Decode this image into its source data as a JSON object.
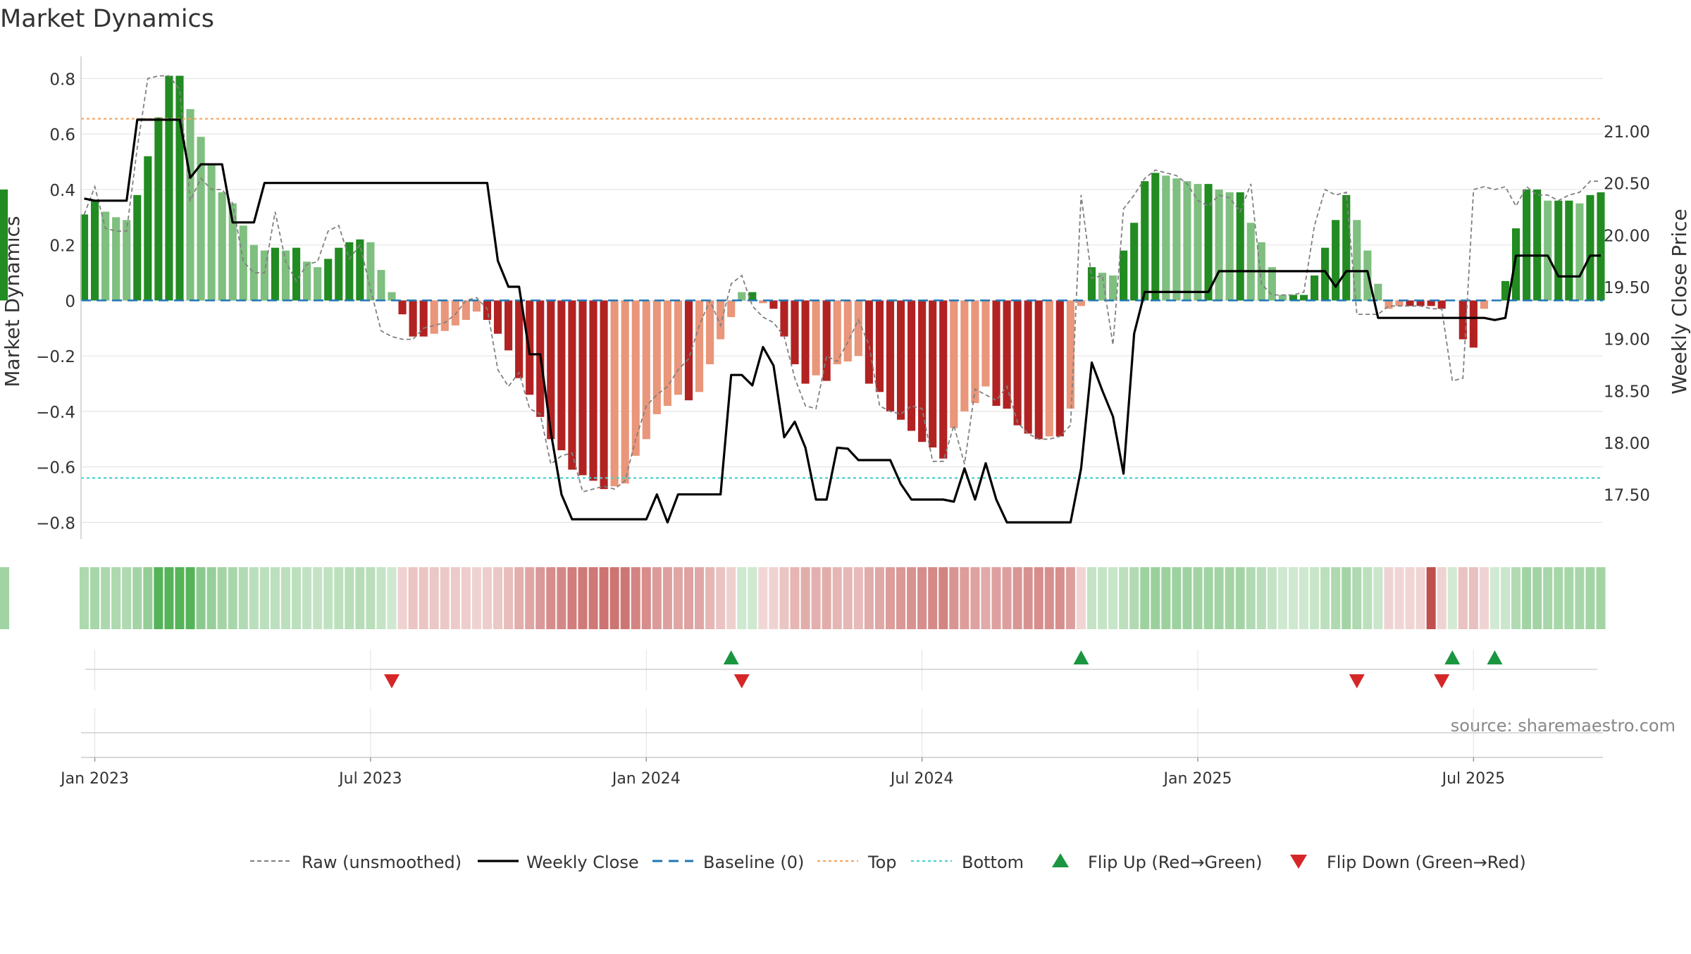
{
  "colors": {
    "strong_green": "#228b22",
    "light_green": "#7fbf7f",
    "strong_red": "#b22222",
    "light_red": "#e9967a",
    "raw_line": "#808080",
    "close_line": "#000000",
    "baseline": "#1f77b4",
    "top_line": "#f4a460",
    "bottom_line": "#48d1cc",
    "flip_up": "#1a9641",
    "flip_down": "#d62728",
    "grid": "#e6e6e6",
    "text": "#333333",
    "source_text": "#888888"
  },
  "chart_data": {
    "type": "bar",
    "title": "Market Dynamics",
    "source": "source: sharemaestro.com",
    "ylabel_left": "Market Dynamics",
    "ylabel_right": "Weekly Close Price",
    "left_axis": {
      "ylim": [
        -0.86,
        0.88
      ],
      "ticks": [
        0.8,
        0.6,
        0.4,
        0.2,
        0,
        -0.2,
        -0.4,
        -0.6,
        -0.8
      ],
      "tick_labels": [
        "0.8",
        "0.6",
        "0.4",
        "0.2",
        "0",
        "−0.2",
        "−0.4",
        "−0.6",
        "−0.8"
      ]
    },
    "right_axis": {
      "ylim": [
        17.07,
        21.72
      ],
      "ticks": [
        21.0,
        20.5,
        20.0,
        19.5,
        19.0,
        18.5,
        18.0,
        17.5
      ],
      "tick_labels": [
        "21.00",
        "20.50",
        "20.00",
        "19.50",
        "19.00",
        "18.50",
        "18.00",
        "17.50"
      ]
    },
    "x_axis": {
      "ticks": [
        {
          "label": "Jan 2023",
          "week": 1
        },
        {
          "label": "Jul 2023",
          "week": 27
        },
        {
          "label": "Jan 2024",
          "week": 53
        },
        {
          "label": "Jul 2024",
          "week": 79
        },
        {
          "label": "Jan 2025",
          "week": 105
        },
        {
          "label": "Jul 2025",
          "week": 131
        }
      ],
      "week_range": [
        -0.3,
        143.2
      ]
    },
    "top_level": 0.655,
    "bottom_level": -0.64,
    "baseline": 0,
    "weeks": [
      0,
      1,
      2,
      3,
      4,
      5,
      6,
      7,
      8,
      9,
      10,
      11,
      12,
      13,
      14,
      15,
      16,
      17,
      18,
      19,
      20,
      21,
      22,
      23,
      24,
      25,
      26,
      27,
      28,
      29,
      30,
      31,
      32,
      33,
      34,
      35,
      36,
      37,
      38,
      39,
      40,
      41,
      42,
      43,
      44,
      45,
      46,
      47,
      48,
      49,
      50,
      51,
      52,
      53,
      54,
      55,
      56,
      57,
      58,
      59,
      60,
      61,
      62,
      63,
      64,
      65,
      66,
      67,
      68,
      69,
      70,
      71,
      72,
      73,
      74,
      75,
      76,
      77,
      78,
      79,
      80,
      81,
      82,
      83,
      84,
      85,
      86,
      87,
      88,
      89,
      90,
      91,
      92,
      93,
      94,
      95,
      96,
      97,
      98,
      99,
      100,
      101,
      102,
      103,
      104,
      105,
      106,
      107,
      108,
      109,
      110,
      111,
      112,
      113,
      114,
      115,
      116,
      117,
      118,
      119,
      120,
      121,
      122,
      123,
      124,
      125,
      126,
      127,
      128,
      129,
      130,
      131,
      132,
      133,
      134,
      135,
      136,
      137,
      138,
      139,
      140,
      141,
      142,
      143
    ],
    "dynamics": [
      0.31,
      0.36,
      0.32,
      0.3,
      0.29,
      0.38,
      0.52,
      0.66,
      0.81,
      0.81,
      0.69,
      0.59,
      0.49,
      0.39,
      0.35,
      0.27,
      0.2,
      0.18,
      0.19,
      0.18,
      0.19,
      0.14,
      0.12,
      0.15,
      0.19,
      0.21,
      0.22,
      0.21,
      0.11,
      0.03,
      -0.05,
      -0.13,
      -0.13,
      -0.12,
      -0.11,
      -0.09,
      -0.07,
      -0.04,
      -0.07,
      -0.12,
      -0.18,
      -0.28,
      -0.34,
      -0.42,
      -0.5,
      -0.54,
      -0.61,
      -0.63,
      -0.65,
      -0.68,
      -0.67,
      -0.66,
      -0.56,
      -0.5,
      -0.41,
      -0.38,
      -0.34,
      -0.36,
      -0.33,
      -0.23,
      -0.14,
      -0.06,
      0.03,
      0.03,
      -0.01,
      -0.03,
      -0.13,
      -0.23,
      -0.3,
      -0.27,
      -0.29,
      -0.23,
      -0.22,
      -0.2,
      -0.3,
      -0.33,
      -0.4,
      -0.43,
      -0.47,
      -0.51,
      -0.53,
      -0.57,
      -0.46,
      -0.4,
      -0.37,
      -0.31,
      -0.38,
      -0.39,
      -0.45,
      -0.48,
      -0.5,
      -0.49,
      -0.49,
      -0.39,
      -0.02,
      0.12,
      0.1,
      0.09,
      0.18,
      0.28,
      0.43,
      0.46,
      0.45,
      0.44,
      0.43,
      0.42,
      0.42,
      0.4,
      0.39,
      0.39,
      0.28,
      0.21,
      0.12,
      0.02,
      0.02,
      0.02,
      0.09,
      0.19,
      0.29,
      0.38,
      0.29,
      0.18,
      0.06,
      -0.03,
      -0.02,
      -0.02,
      -0.02,
      -0.02,
      -0.03,
      0,
      -0.14,
      -0.17,
      -0.03,
      0,
      0.07,
      0.26,
      0.4,
      0.4,
      0.36,
      0.36,
      0.36,
      0.35,
      0.38,
      0.39,
      0.4
    ],
    "raw": [
      0.31,
      0.41,
      0.26,
      0.25,
      0.25,
      0.55,
      0.8,
      0.81,
      0.81,
      0.76,
      0.36,
      0.44,
      0.4,
      0.4,
      0.35,
      0.14,
      0.1,
      0.1,
      0.32,
      0.14,
      0.07,
      0.13,
      0.14,
      0.25,
      0.27,
      0.15,
      0.2,
      0.04,
      -0.11,
      -0.13,
      -0.14,
      -0.14,
      -0.1,
      -0.09,
      -0.08,
      -0.05,
      0.0,
      0.01,
      -0.03,
      -0.25,
      -0.31,
      -0.26,
      -0.39,
      -0.41,
      -0.59,
      -0.56,
      -0.55,
      -0.69,
      -0.68,
      -0.67,
      -0.68,
      -0.65,
      -0.5,
      -0.38,
      -0.34,
      -0.31,
      -0.25,
      -0.21,
      -0.09,
      0.0,
      -0.09,
      0.06,
      0.09,
      -0.02,
      -0.06,
      -0.08,
      -0.13,
      -0.28,
      -0.38,
      -0.39,
      -0.2,
      -0.22,
      -0.15,
      -0.07,
      -0.16,
      -0.38,
      -0.4,
      -0.41,
      -0.38,
      -0.39,
      -0.58,
      -0.58,
      -0.45,
      -0.59,
      -0.32,
      -0.34,
      -0.36,
      -0.31,
      -0.44,
      -0.48,
      -0.5,
      -0.5,
      -0.49,
      -0.45,
      0.38,
      0.08,
      0.09,
      -0.16,
      0.33,
      0.38,
      0.44,
      0.47,
      0.46,
      0.45,
      0.42,
      0.36,
      0.34,
      0.38,
      0.37,
      0.32,
      0.42,
      0.06,
      0.02,
      0.02,
      0.02,
      0.03,
      0.27,
      0.4,
      0.38,
      0.39,
      -0.05,
      -0.05,
      -0.05,
      -0.02,
      -0.02,
      -0.02,
      -0.02,
      -0.03,
      -0.03,
      -0.29,
      -0.28,
      0.4,
      0.41,
      0.4,
      0.41,
      0.34,
      0.41,
      0.38,
      0.38,
      0.36,
      0.38,
      0.39,
      0.43,
      0.43
    ],
    "weekly_close": [
      20.35,
      20.33,
      20.33,
      20.33,
      20.33,
      21.11,
      21.11,
      21.11,
      21.11,
      21.11,
      20.55,
      20.68,
      20.68,
      20.68,
      20.12,
      20.12,
      20.12,
      20.5,
      20.5,
      20.5,
      20.5,
      20.5,
      20.5,
      20.5,
      20.5,
      20.5,
      20.5,
      20.5,
      20.5,
      20.5,
      20.5,
      20.5,
      20.5,
      20.5,
      20.5,
      20.5,
      20.5,
      20.5,
      20.5,
      19.75,
      19.5,
      19.5,
      18.85,
      18.85,
      18.1,
      17.5,
      17.26,
      17.26,
      17.26,
      17.26,
      17.26,
      17.26,
      17.26,
      17.26,
      17.5,
      17.23,
      17.5,
      17.5,
      17.5,
      17.5,
      17.5,
      18.65,
      18.65,
      18.55,
      18.92,
      18.74,
      18.05,
      18.2,
      17.95,
      17.45,
      17.45,
      17.95,
      17.94,
      17.83,
      17.83,
      17.83,
      17.83,
      17.6,
      17.45,
      17.45,
      17.45,
      17.45,
      17.43,
      17.75,
      17.45,
      17.8,
      17.45,
      17.23,
      17.23,
      17.23,
      17.23,
      17.23,
      17.23,
      17.23,
      17.75,
      18.77,
      18.5,
      18.25,
      17.7,
      19.05,
      19.45,
      19.45,
      19.45,
      19.45,
      19.45,
      19.45,
      19.45,
      19.65,
      19.65,
      19.65,
      19.65,
      19.65,
      19.65,
      19.65,
      19.65,
      19.65,
      19.65,
      19.65,
      19.5,
      19.65,
      19.65,
      19.65,
      19.2,
      19.2,
      19.2,
      19.2,
      19.2,
      19.2,
      19.2,
      19.2,
      19.2,
      19.2,
      19.2,
      19.18,
      19.2,
      19.8,
      19.8,
      19.8,
      19.8,
      19.6,
      19.6,
      19.6,
      19.8,
      19.8,
      19.8,
      20.0,
      20.0
    ],
    "heat_strip": {
      "strong_green_weeks": [
        7,
        8,
        9,
        10
      ],
      "strong_red_weeks": [
        127
      ]
    },
    "flip_up_weeks": [
      61,
      94,
      129,
      133
    ],
    "flip_down_weeks": [
      29,
      62,
      120,
      128
    ],
    "legend": [
      {
        "label": "Raw (unsmoothed)",
        "style": "dashed-gray"
      },
      {
        "label": "Weekly Close",
        "style": "solid-black"
      },
      {
        "label": "Baseline (0)",
        "style": "dashed-blue"
      },
      {
        "label": "Top",
        "style": "dotted-orange"
      },
      {
        "label": "Bottom",
        "style": "dotted-teal"
      },
      {
        "label": "Flip Up (Red→Green)",
        "style": "triangle-up-green"
      },
      {
        "label": "Flip Down (Green→Red)",
        "style": "triangle-down-red"
      }
    ]
  }
}
